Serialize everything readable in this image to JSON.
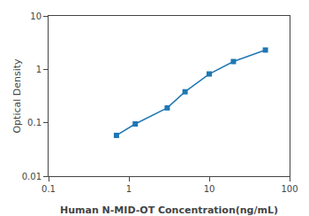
{
  "chart_data": {
    "type": "line",
    "x": [
      0.7,
      1.2,
      3.0,
      5.0,
      10.0,
      20.0,
      50.0
    ],
    "values": [
      0.058,
      0.095,
      0.19,
      0.38,
      0.82,
      1.4,
      2.3
    ],
    "xlabel": "Human N-MID-OT Concentration(ng/mL)",
    "ylabel": "Optical Density",
    "log": true,
    "xlim": [
      0.1,
      100
    ],
    "ylim": [
      0.01,
      10
    ],
    "xticks": [
      0.1,
      1,
      10,
      100
    ],
    "yticks": [
      0.01,
      0.1,
      1,
      10
    ],
    "marker": "square",
    "grid": false
  }
}
